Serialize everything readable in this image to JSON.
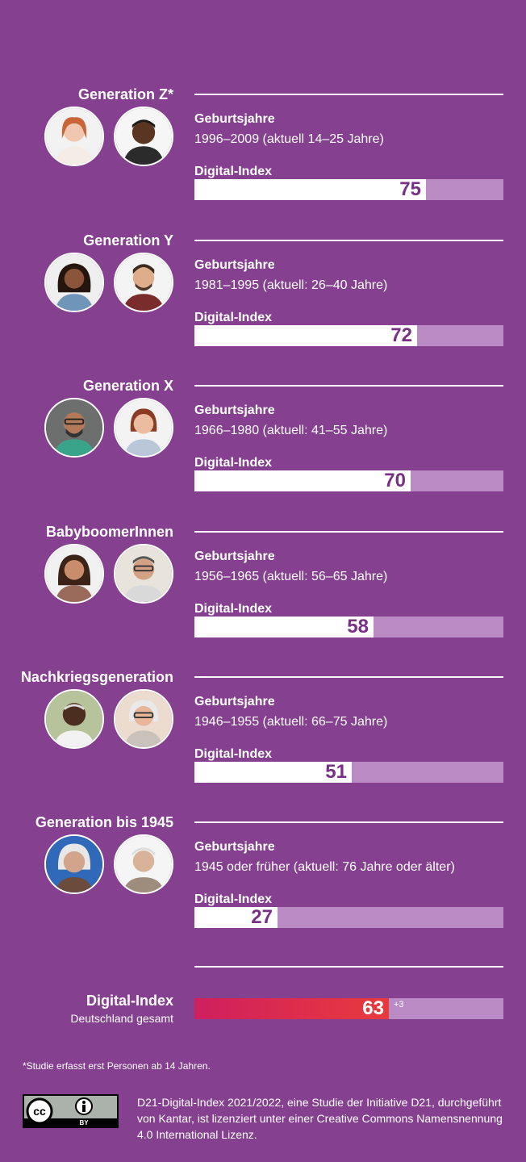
{
  "colors": {
    "background": "#85408f",
    "bar_track": "#b98ac3",
    "bar_fill": "#ffffff",
    "bar_value_text": "#7a2f86",
    "total_gradient_start": "#cf1f5f",
    "total_gradient_end": "#e83a3d"
  },
  "generations": [
    {
      "title": "Generation Z*",
      "birth_label": "Geburtsjahre",
      "birth_value": "1996–2009 (aktuell 14–25 Jahre)",
      "index_label": "Digital-Index"
    },
    {
      "title": "Generation Y",
      "birth_label": "Geburtsjahre",
      "birth_value": "1981–1995 (aktuell: 26–40 Jahre)",
      "index_label": "Digital-Index"
    },
    {
      "title": "Generation X",
      "birth_label": "Geburtsjahre",
      "birth_value": "1966–1980 (aktuell: 41–55 Jahre)",
      "index_label": "Digital-Index"
    },
    {
      "title": "BabyboomerInnen",
      "birth_label": "Geburtsjahre",
      "birth_value": "1956–1965 (aktuell: 56–65 Jahre)",
      "index_label": "Digital-Index"
    },
    {
      "title": "Nachkriegsgeneration",
      "birth_label": "Geburtsjahre",
      "birth_value": "1946–1955 (aktuell: 66–75 Jahre)",
      "index_label": "Digital-Index"
    },
    {
      "title": "Generation bis 1945",
      "birth_label": "Geburtsjahre",
      "birth_value": "1945 oder früher (aktuell: 76 Jahre oder älter)",
      "index_label": "Digital-Index"
    }
  ],
  "total": {
    "title": "Digital-Index",
    "subtitle": "Deutschland gesamt",
    "value": 63,
    "delta": "+3"
  },
  "chart_data": {
    "type": "bar",
    "categories": [
      "Generation Z*",
      "Generation Y",
      "Generation X",
      "BabyboomerInnen",
      "Nachkriegsgeneration",
      "Generation bis 1945"
    ],
    "values": [
      75,
      72,
      70,
      58,
      51,
      27
    ],
    "ylim": [
      0,
      100
    ],
    "grid": false
  },
  "footnote": "*Studie erfasst erst Personen ab 14 Jahren.",
  "license": {
    "badge_text": "BY",
    "text": "D21-Digital-Index 2021/2022, eine Studie der Initiative D21, durchgeführt von Kantar, ist lizenziert unter einer Creative Commons Namensnennung 4.0 International Lizenz."
  }
}
